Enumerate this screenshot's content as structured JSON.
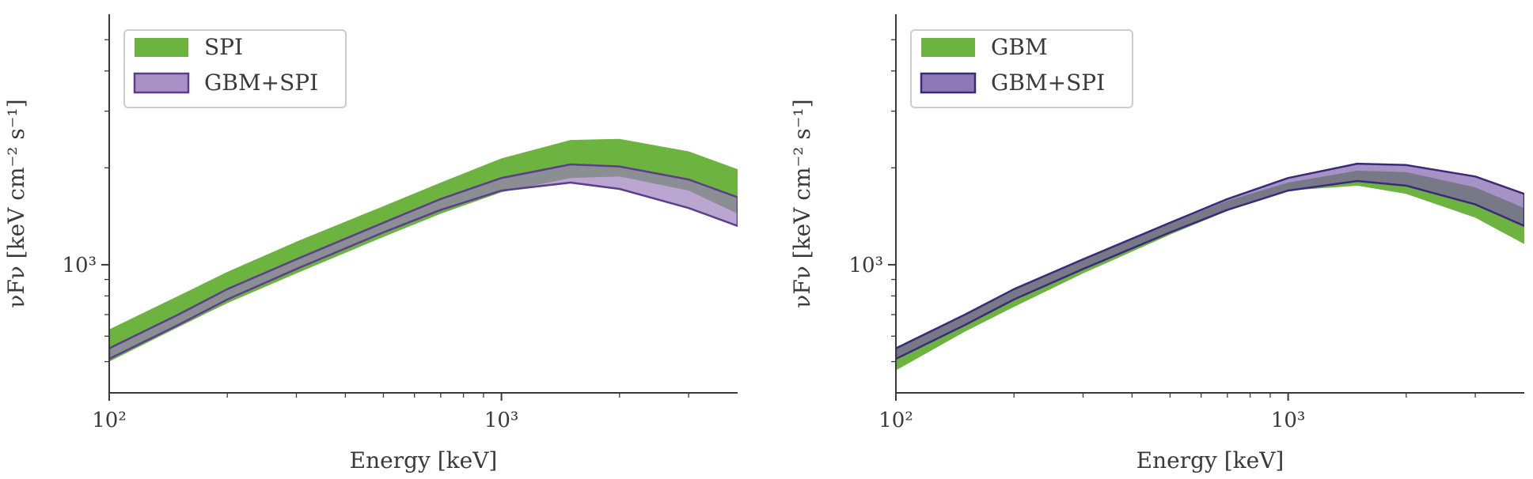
{
  "chart_data": [
    {
      "type": "area",
      "xlabel": "Energy [keV]",
      "ylabel": "νFν [keV cm⁻² s⁻¹]",
      "xscale": "log",
      "yscale": "log",
      "xlim": [
        100,
        4000
      ],
      "ylim": [
        400,
        6000
      ],
      "x_ticks": [
        {
          "value": 100,
          "label": "10²"
        },
        {
          "value": 1000,
          "label": "10³"
        }
      ],
      "y_ticks": [
        {
          "value": 1000,
          "label": "10³"
        }
      ],
      "grid": false,
      "legend_position": "top-left",
      "x": [
        100,
        150,
        200,
        300,
        500,
        700,
        1000,
        1500,
        2000,
        3000,
        4000
      ],
      "series": [
        {
          "name": "SPI",
          "color": "#6db33f",
          "lower": [
            500,
            640,
            760,
            940,
            1220,
            1440,
            1680,
            1860,
            1880,
            1700,
            1440
          ],
          "upper": [
            630,
            800,
            950,
            1180,
            1520,
            1800,
            2140,
            2440,
            2460,
            2250,
            1980
          ]
        },
        {
          "name": "GBM+SPI",
          "color": "#9a7cbb",
          "edge": "#5b3f8c",
          "lower": [
            510,
            650,
            780,
            970,
            1260,
            1480,
            1700,
            1800,
            1720,
            1500,
            1320
          ],
          "upper": [
            550,
            700,
            840,
            1040,
            1350,
            1600,
            1860,
            2050,
            2020,
            1840,
            1620
          ]
        }
      ]
    },
    {
      "type": "area",
      "xlabel": "Energy [keV]",
      "ylabel": "νFν [keV cm⁻² s⁻¹]",
      "xscale": "log",
      "yscale": "log",
      "xlim": [
        100,
        4000
      ],
      "ylim": [
        400,
        6000
      ],
      "x_ticks": [
        {
          "value": 100,
          "label": "10²"
        },
        {
          "value": 1000,
          "label": "10³"
        }
      ],
      "y_ticks": [
        {
          "value": 1000,
          "label": "10³"
        }
      ],
      "grid": false,
      "legend_position": "top-left",
      "x": [
        100,
        150,
        200,
        300,
        500,
        700,
        1000,
        1500,
        2000,
        3000,
        4000
      ],
      "series": [
        {
          "name": "GBM",
          "color": "#6db33f",
          "lower": [
            470,
            620,
            740,
            940,
            1240,
            1470,
            1700,
            1760,
            1660,
            1400,
            1160
          ],
          "upper": [
            550,
            700,
            840,
            1040,
            1340,
            1580,
            1800,
            1960,
            1940,
            1740,
            1500
          ]
        },
        {
          "name": "GBM+SPI",
          "color": "#7c5fa8",
          "edge": "#3b2a7a",
          "lower": [
            510,
            650,
            780,
            970,
            1260,
            1480,
            1700,
            1820,
            1760,
            1540,
            1320
          ],
          "upper": [
            550,
            700,
            840,
            1040,
            1350,
            1600,
            1860,
            2060,
            2040,
            1880,
            1660
          ]
        }
      ]
    }
  ]
}
